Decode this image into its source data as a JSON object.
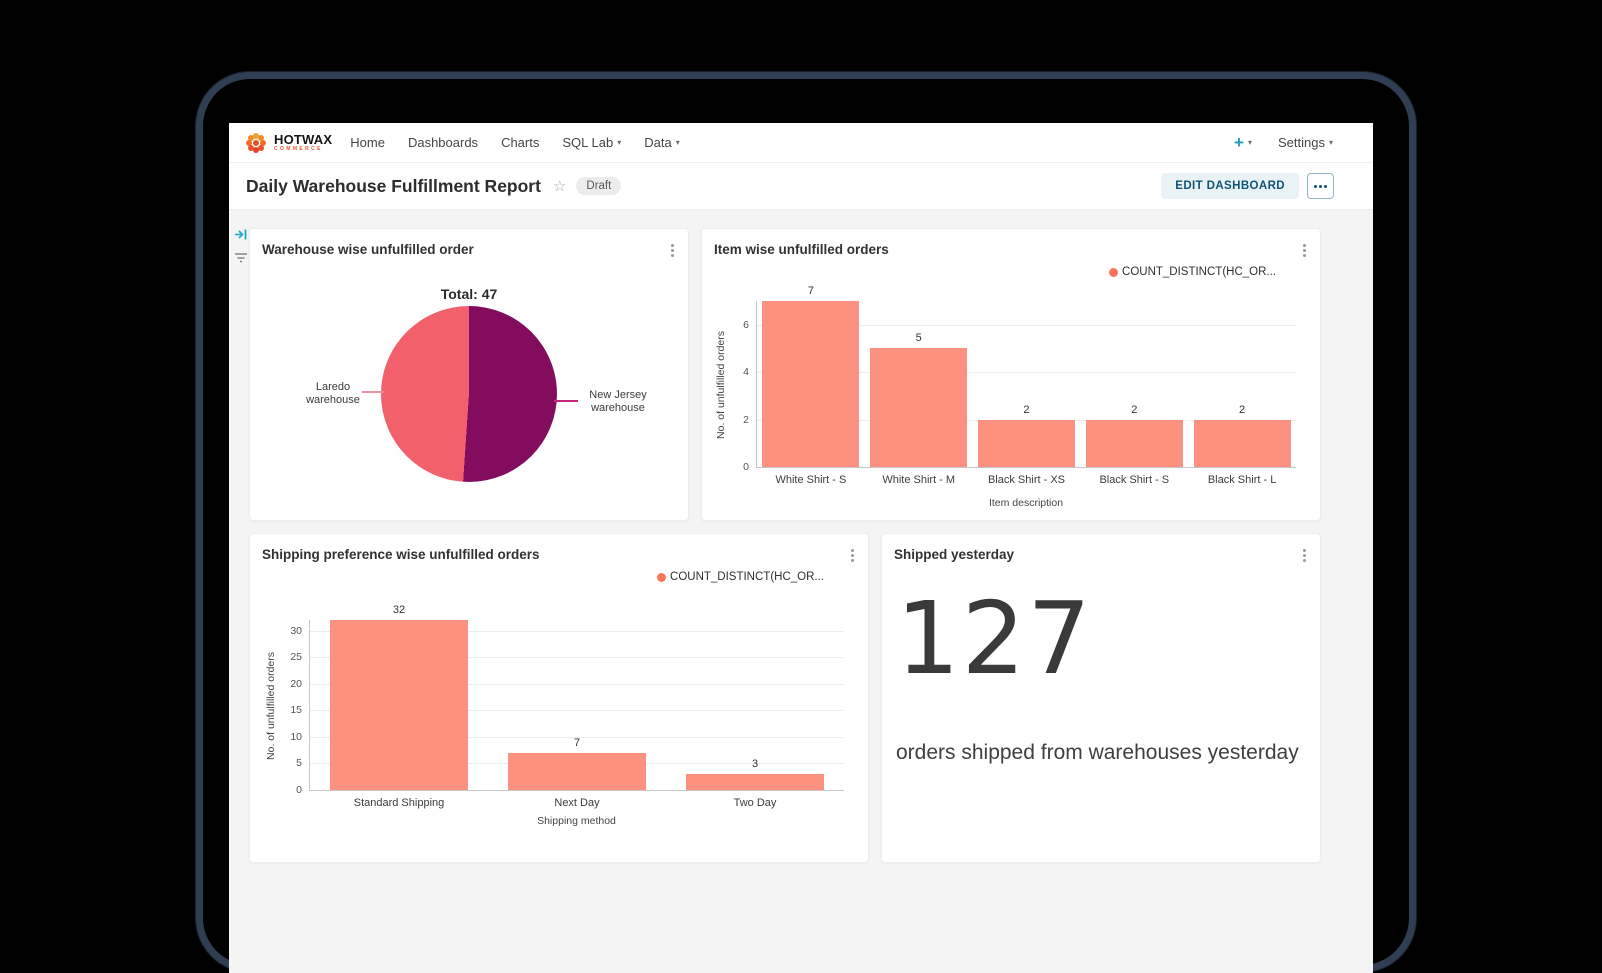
{
  "navbar": {
    "logo": {
      "title": "HOTWAX",
      "subtitle": "COMMERCE"
    },
    "items": [
      {
        "label": "Home"
      },
      {
        "label": "Dashboards"
      },
      {
        "label": "Charts"
      },
      {
        "label": "SQL Lab"
      },
      {
        "label": "Data"
      }
    ],
    "create_label": "+",
    "settings_label": "Settings"
  },
  "header": {
    "title": "Daily Warehouse Fulfillment Report",
    "status_badge": "Draft",
    "edit_button_label": "EDIT DASHBOARD"
  },
  "colors": {
    "accent_teal": "#20a7c9",
    "bar_salmon": "#fc9180",
    "pie_salmon": "#f2606b",
    "pie_magenta": "#830c5f",
    "dashboard_bg": "#f4f4f4"
  },
  "chart_data": {
    "pie": {
      "type": "pie",
      "title": "Warehouse wise unfulfilled order",
      "total_label": "Total: 47",
      "total": 47,
      "slices": [
        {
          "label": "New Jersey warehouse",
          "value": 24,
          "color": "#830c5f",
          "line_color": "#c6267d"
        },
        {
          "label": "Laredo warehouse",
          "value": 23,
          "color": "#f2606b",
          "line_color": "#f28fa0"
        }
      ]
    },
    "item_bar": {
      "type": "bar",
      "title": "Item wise unfulfilled orders",
      "legend": "COUNT_DISTINCT(HC_OR...",
      "legend_color": "#fa765b",
      "categories": [
        "White Shirt - S",
        "White Shirt - M",
        "Black Shirt - XS",
        "Black Shirt - S",
        "Black Shirt - L"
      ],
      "values": [
        7,
        5,
        2,
        2,
        2
      ],
      "bar_color": "#fc9180",
      "ylabel": "No. of unfulfilled orders",
      "xlabel": "Item description",
      "yticks": [
        0,
        2,
        4,
        6
      ],
      "ymax": 7,
      "grid": true,
      "legend_position": "top-right"
    },
    "shipping_bar": {
      "type": "bar",
      "title": "Shipping preference wise unfulfilled orders",
      "legend": "COUNT_DISTINCT(HC_OR...",
      "legend_color": "#fa765b",
      "categories": [
        "Standard Shipping",
        "Next Day",
        "Two Day"
      ],
      "values": [
        32,
        7,
        3
      ],
      "bar_color": "#fc9180",
      "ylabel": "No. of unfulfilled orders",
      "xlabel": "Shipping method",
      "yticks": [
        0,
        5,
        10,
        15,
        20,
        25,
        30
      ],
      "ymax": 32,
      "grid": true,
      "legend_position": "top-right"
    },
    "big_number": {
      "type": "big_number",
      "title": "Shipped yesterday",
      "value": "127",
      "subtitle": "orders shipped from warehouses yesterday"
    }
  }
}
